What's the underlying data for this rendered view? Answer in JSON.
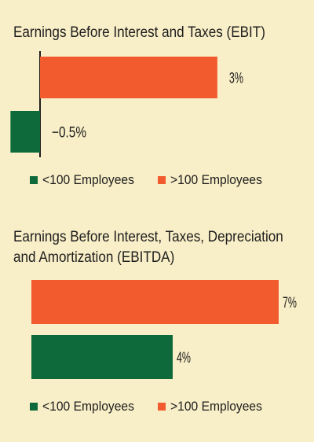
{
  "colors": {
    "background": "#f8eec7",
    "lt100": "#0e6a3b",
    "gt100": "#f25b2d",
    "text": "#1e1e1e"
  },
  "chart_data": [
    {
      "type": "bar",
      "orientation": "horizontal",
      "title": "Earnings Before Interest and Taxes (EBIT)",
      "series": [
        {
          "name": ">100 Employees",
          "value": 3,
          "label": "3%",
          "color": "#f25b2d"
        },
        {
          "name": "<100 Employees",
          "value": -0.5,
          "label": "−0.5%",
          "color": "#0e6a3b"
        }
      ],
      "legend": [
        {
          "name": "<100 Employees",
          "color": "#0e6a3b"
        },
        {
          "name": ">100 Employees",
          "color": "#f25b2d"
        }
      ],
      "legend_placement": "bottom",
      "unit": "%",
      "grid": false
    },
    {
      "type": "bar",
      "orientation": "horizontal",
      "title": "Earnings Before Interest, Taxes, Depreciation and Amortization (EBITDA)",
      "title_lines": [
        "Earnings Before Interest, Taxes, Depreciation",
        "and Amortization (EBITDA)"
      ],
      "series": [
        {
          "name": ">100 Employees",
          "value": 7,
          "label": "7%",
          "color": "#f25b2d"
        },
        {
          "name": "<100 Employees",
          "value": 4,
          "label": "4%",
          "color": "#0e6a3b"
        }
      ],
      "legend": [
        {
          "name": "<100 Employees",
          "color": "#0e6a3b"
        },
        {
          "name": ">100 Employees",
          "color": "#f25b2d"
        }
      ],
      "legend_placement": "bottom",
      "unit": "%",
      "grid": false
    }
  ]
}
